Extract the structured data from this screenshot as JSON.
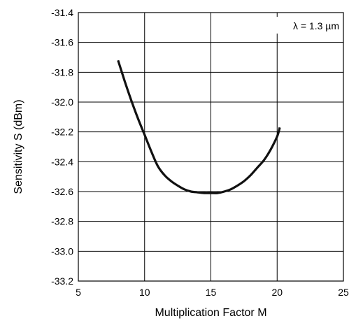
{
  "chart_data": {
    "type": "line",
    "title": "",
    "xlabel": "Multiplication Factor M",
    "ylabel": "Sensitivity S (dBm)",
    "xlim": [
      5,
      25
    ],
    "ylim": [
      -33.2,
      -31.4
    ],
    "x_ticks": [
      5,
      10,
      15,
      20,
      25
    ],
    "x_tick_labels": [
      "5",
      "10",
      "15",
      "20",
      "25"
    ],
    "y_ticks": [
      -31.4,
      -31.6,
      -31.8,
      -32.0,
      -32.2,
      -32.4,
      -32.6,
      -32.8,
      -33.0,
      -33.2
    ],
    "y_tick_labels": [
      "-31.4",
      "-31.6",
      "-31.8",
      "-32.0",
      "-32.2",
      "-32.4",
      "-32.6",
      "-32.8",
      "-33.0",
      "-33.2"
    ],
    "grid": true,
    "annotation": "λ = 1.3 µm",
    "series": [
      {
        "x": [
          8.0,
          8.5,
          9.0,
          9.5,
          10.0,
          10.5,
          11.0,
          11.5,
          12.0,
          12.5,
          13.0,
          13.5,
          14.0,
          14.5,
          15.0,
          15.5,
          16.0,
          16.5,
          17.0,
          17.5,
          18.0,
          18.5,
          19.0,
          19.5,
          20.0,
          20.2
        ],
        "y": [
          -31.72,
          -31.86,
          -31.99,
          -32.11,
          -32.22,
          -32.33,
          -32.43,
          -32.49,
          -32.53,
          -32.56,
          -32.585,
          -32.6,
          -32.605,
          -32.61,
          -32.61,
          -32.61,
          -32.6,
          -32.585,
          -32.56,
          -32.53,
          -32.49,
          -32.44,
          -32.39,
          -32.32,
          -32.23,
          -32.17
        ],
        "color": "#111111"
      }
    ]
  }
}
